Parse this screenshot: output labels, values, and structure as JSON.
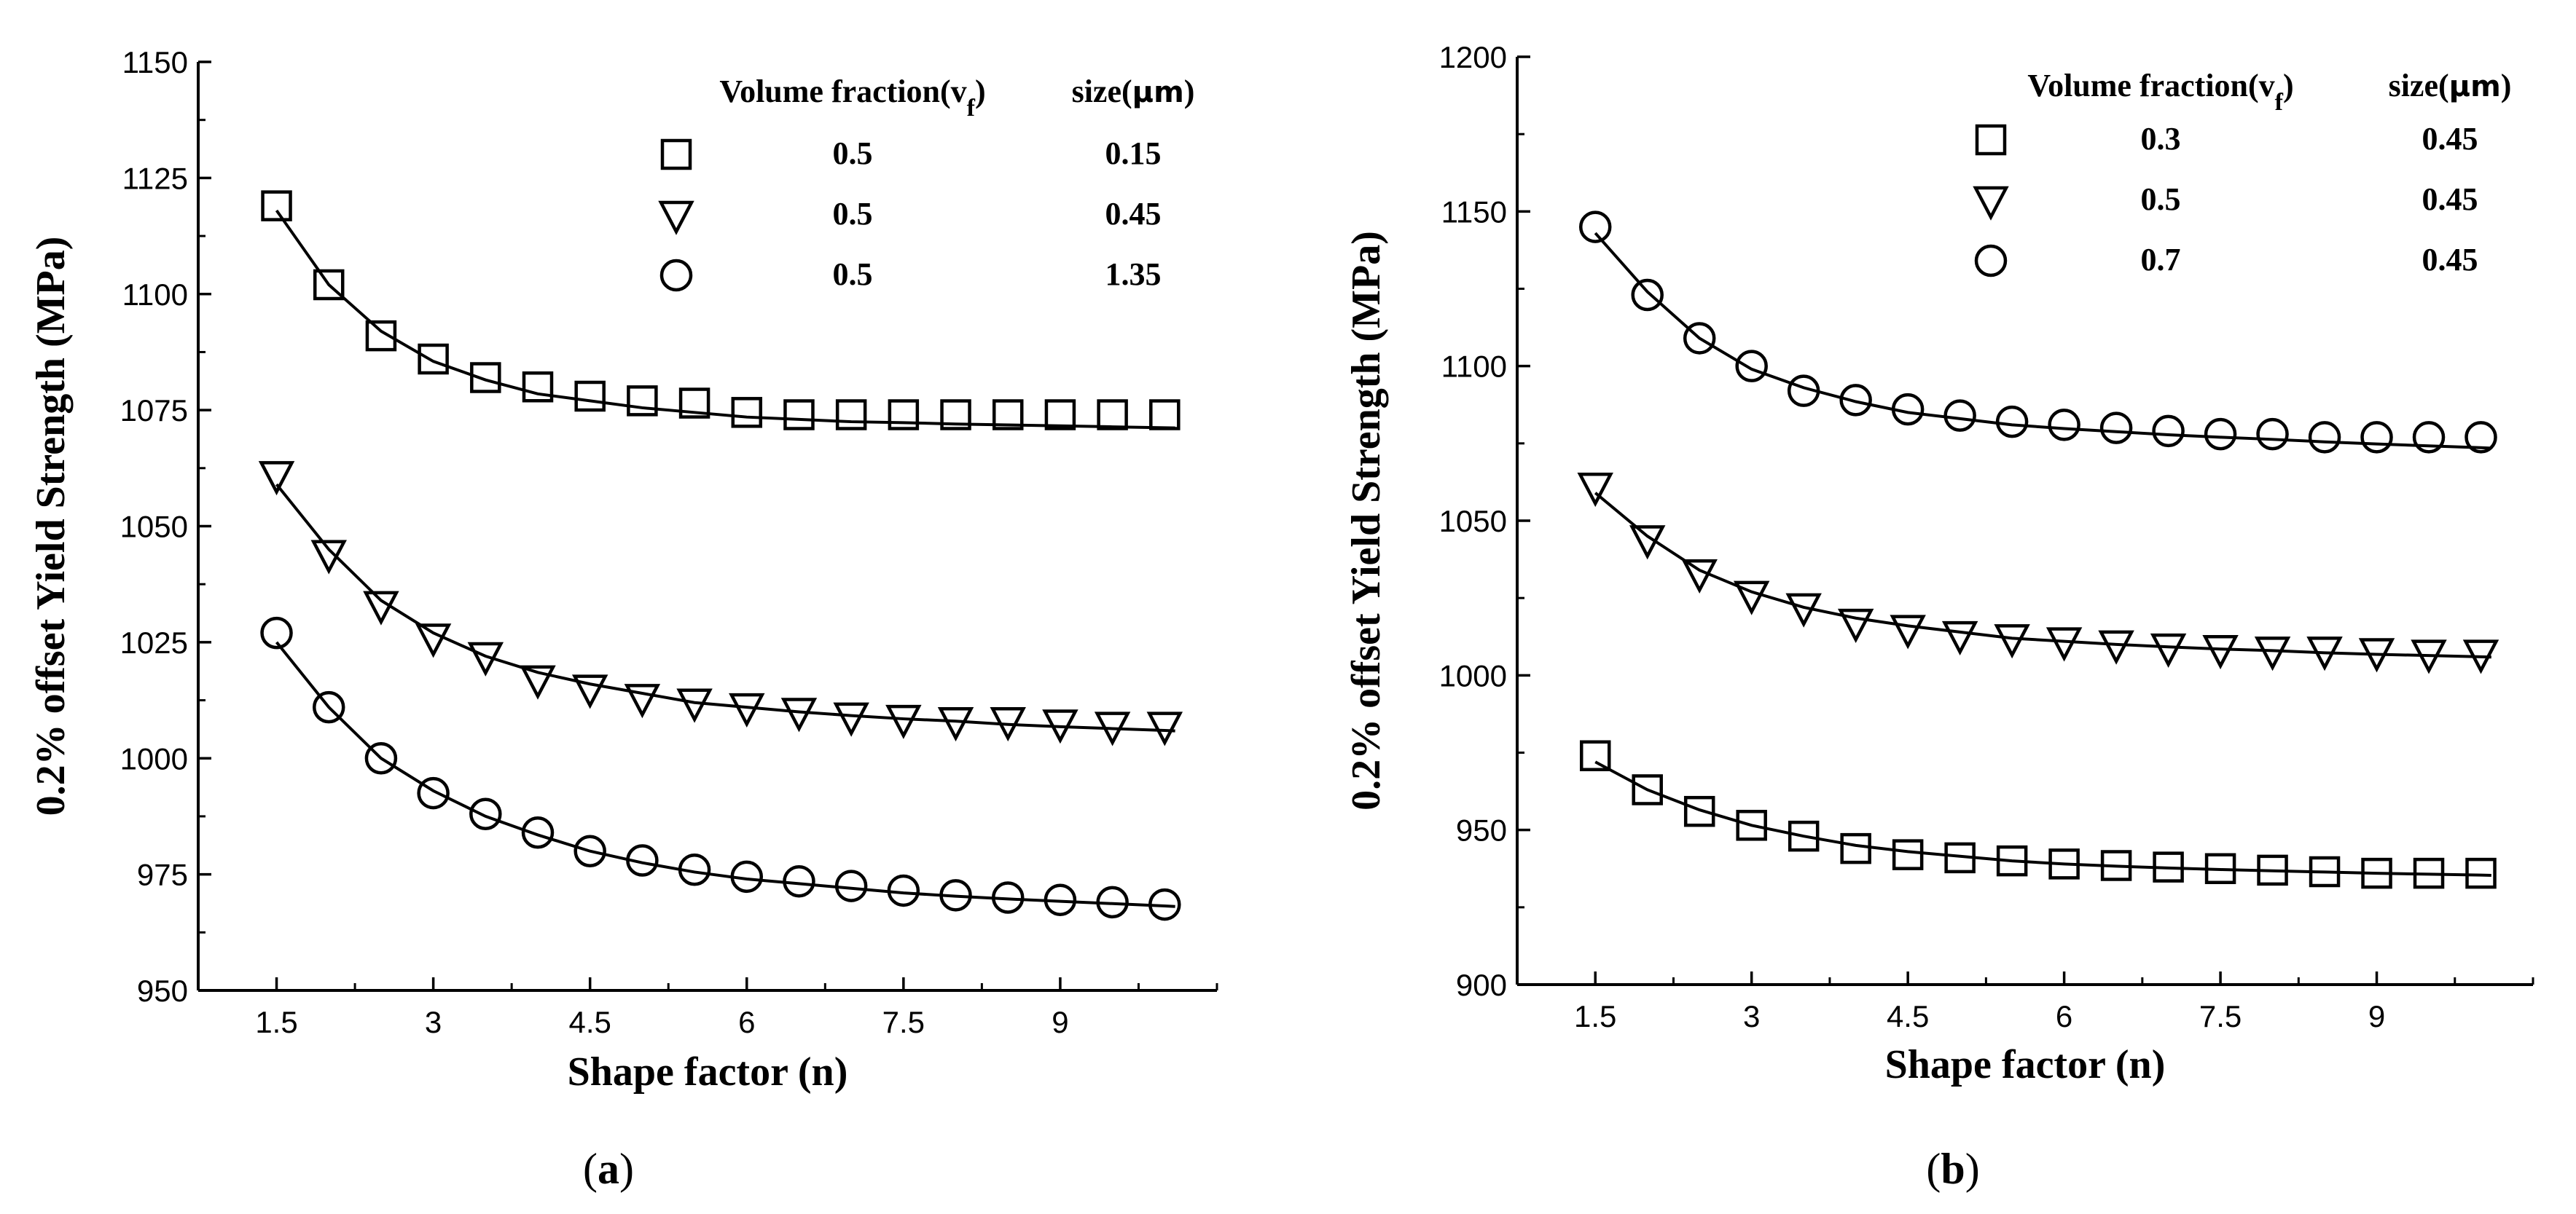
{
  "chart_data": [
    {
      "type": "scatter",
      "panel": "a",
      "panel_label_open": "(",
      "panel_label_letter": "a",
      "panel_label_close": ")",
      "xlabel": "Shape factor (n)",
      "ylabel": "0.2% offset Yield Strength (MPa)",
      "xlim": [
        0.75,
        10.5
      ],
      "ylim": [
        950,
        1150
      ],
      "xticks": [
        1.5,
        3,
        4.5,
        6,
        7.5,
        9
      ],
      "xtick_labels": [
        "1.5",
        "3",
        "4.5",
        "6",
        "7.5",
        "9"
      ],
      "yticks": [
        950,
        975,
        1000,
        1025,
        1050,
        1075,
        1100,
        1125,
        1150
      ],
      "ytick_labels": [
        "950",
        "975",
        "1000",
        "1025",
        "1050",
        "1075",
        "1100",
        "1125",
        "1150"
      ],
      "grid": false,
      "legend": {
        "position": "top-right",
        "header_vf_prefix": "Volume fraction(v",
        "header_vf_sub": "f",
        "header_vf_suffix": ")",
        "header_size_prefix": "size(",
        "header_size_unit": "μm",
        "header_size_suffix": ")"
      },
      "x": [
        1.5,
        2,
        2.5,
        3,
        3.5,
        4,
        4.5,
        5,
        5.5,
        6,
        6.5,
        7,
        7.5,
        8,
        8.5,
        9,
        9.5,
        10
      ],
      "series": [
        {
          "name": "0.5 / 0.15",
          "marker": "square",
          "vf": "0.5",
          "size": "0.15",
          "values": [
            1119,
            1102,
            1091,
            1086,
            1082,
            1080,
            1078,
            1077,
            1076.5,
            1074.5,
            1074,
            1074,
            1074,
            1074,
            1074,
            1074,
            1074,
            1074
          ],
          "fit": [
            1118,
            1102,
            1092,
            1085.5,
            1081.5,
            1078.5,
            1077,
            1075.5,
            1074.5,
            1073.5,
            1073,
            1072.5,
            1072.3,
            1072,
            1071.8,
            1071.6,
            1071.4,
            1071.2
          ]
        },
        {
          "name": "0.5 / 0.45",
          "marker": "triangle-down",
          "vf": "0.5",
          "size": "0.45",
          "values": [
            1061,
            1044,
            1033,
            1026,
            1022,
            1017,
            1015,
            1013,
            1012,
            1011,
            1010,
            1009,
            1008.5,
            1008,
            1008,
            1007.5,
            1007,
            1007
          ],
          "fit": [
            1059,
            1045,
            1034,
            1027,
            1022,
            1018.5,
            1016,
            1014,
            1012,
            1011,
            1010,
            1009.2,
            1008.5,
            1008,
            1007.3,
            1006.8,
            1006.4,
            1006
          ]
        },
        {
          "name": "0.5 / 1.35",
          "marker": "circle",
          "vf": "0.5",
          "size": "1.35",
          "values": [
            1027,
            1011,
            1000,
            992.5,
            988,
            984,
            980,
            978,
            976,
            974.5,
            973.5,
            972.5,
            971.5,
            970.5,
            970,
            969.5,
            969,
            968.5
          ],
          "fit": [
            1025,
            1011,
            1000,
            993,
            987.5,
            983.5,
            980,
            977.5,
            975.5,
            974,
            973,
            972,
            971,
            970.3,
            969.7,
            969.2,
            968.7,
            968.2
          ]
        }
      ]
    },
    {
      "type": "scatter",
      "panel": "b",
      "panel_label_open": "(",
      "panel_label_letter": "b",
      "panel_label_close": ")",
      "xlabel": "Shape factor (n)",
      "ylabel": "0.2% offset Yield Strength (MPa)",
      "xlim": [
        0.75,
        10.5
      ],
      "ylim": [
        900,
        1200
      ],
      "xticks": [
        1.5,
        3,
        4.5,
        6,
        7.5,
        9
      ],
      "xtick_labels": [
        "1.5",
        "3",
        "4.5",
        "6",
        "7.5",
        "9"
      ],
      "yticks": [
        900,
        950,
        1000,
        1050,
        1100,
        1150,
        1200
      ],
      "ytick_labels": [
        "900",
        "950",
        "1000",
        "1050",
        "1100",
        "1150",
        "1200"
      ],
      "grid": false,
      "legend": {
        "position": "top-right",
        "header_vf_prefix": "Volume fraction(v",
        "header_vf_sub": "f",
        "header_vf_suffix": ")",
        "header_size_prefix": "size(",
        "header_size_unit": "μm",
        "header_size_suffix": ")"
      },
      "x": [
        1.5,
        2,
        2.5,
        3,
        3.5,
        4,
        4.5,
        5,
        5.5,
        6,
        6.5,
        7,
        7.5,
        8,
        8.5,
        9,
        9.5,
        10
      ],
      "series": [
        {
          "name": "0.3 / 0.45",
          "marker": "square",
          "vf": "0.3",
          "size": "0.45",
          "values": [
            974,
            963,
            956,
            951.5,
            948,
            944,
            942,
            941,
            940,
            939,
            938.5,
            938,
            937.5,
            937,
            936.5,
            936,
            936,
            936
          ],
          "fit": [
            972,
            963,
            956.5,
            951.5,
            948,
            945,
            943,
            941.5,
            940,
            939,
            938.3,
            937.7,
            937.2,
            936.8,
            936.4,
            936,
            935.7,
            935.4
          ]
        },
        {
          "name": "0.5 / 0.45",
          "marker": "triangle-down",
          "vf": "0.5",
          "size": "0.45",
          "values": [
            1061,
            1044,
            1033,
            1026,
            1022,
            1017,
            1015,
            1013,
            1012,
            1011,
            1010,
            1009,
            1008.5,
            1008,
            1008,
            1007.5,
            1007,
            1007
          ],
          "fit": [
            1059,
            1045,
            1034,
            1027,
            1022,
            1018.5,
            1016,
            1014,
            1012,
            1011,
            1010,
            1009.2,
            1008.5,
            1008,
            1007.3,
            1006.8,
            1006.4,
            1006
          ]
        },
        {
          "name": "0.7 / 0.45",
          "marker": "circle",
          "vf": "0.7",
          "size": "0.45",
          "values": [
            1145,
            1123,
            1109,
            1100,
            1092,
            1089,
            1086,
            1084,
            1082,
            1081,
            1080,
            1079,
            1078,
            1078,
            1077,
            1077,
            1077,
            1077
          ],
          "fit": [
            1143,
            1124,
            1109,
            1099,
            1093,
            1088.5,
            1085,
            1083,
            1081,
            1079.8,
            1078.8,
            1077.8,
            1077,
            1076.3,
            1075.5,
            1074.8,
            1074.2,
            1073.6
          ]
        }
      ]
    }
  ]
}
